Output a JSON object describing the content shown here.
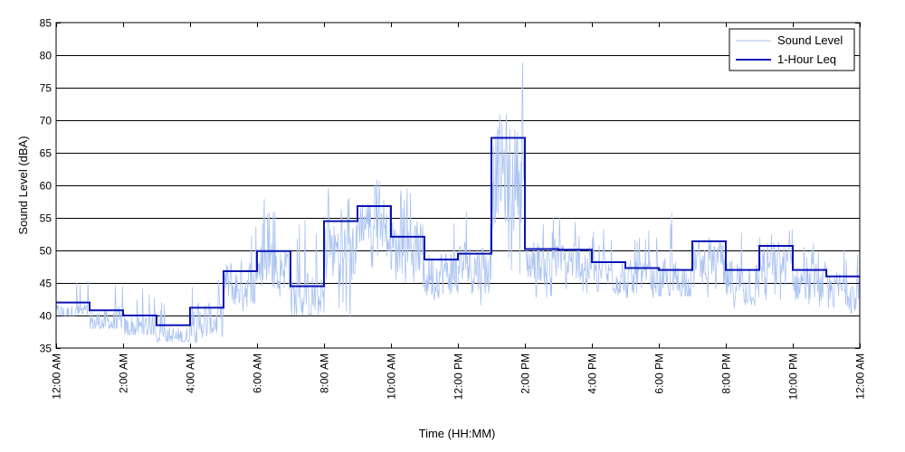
{
  "chart_data": {
    "type": "line",
    "xlabel": "Time (HH:MM)",
    "ylabel": "Sound Level (dBA)",
    "xlim": [
      0,
      24
    ],
    "ylim": [
      35,
      85
    ],
    "y_ticks": [
      35,
      40,
      45,
      50,
      55,
      60,
      65,
      70,
      75,
      80,
      85
    ],
    "x_ticks": [
      {
        "hour": 0,
        "label": "12:00 AM"
      },
      {
        "hour": 2,
        "label": "2:00 AM"
      },
      {
        "hour": 4,
        "label": "4:00 AM"
      },
      {
        "hour": 6,
        "label": "6:00 AM"
      },
      {
        "hour": 8,
        "label": "8:00 AM"
      },
      {
        "hour": 10,
        "label": "10:00 AM"
      },
      {
        "hour": 12,
        "label": "12:00 PM"
      },
      {
        "hour": 14,
        "label": "2:00 PM"
      },
      {
        "hour": 16,
        "label": "4:00 PM"
      },
      {
        "hour": 18,
        "label": "6:00 PM"
      },
      {
        "hour": 20,
        "label": "8:00 PM"
      },
      {
        "hour": 22,
        "label": "10:00 PM"
      },
      {
        "hour": 24,
        "label": "12:00 AM"
      }
    ],
    "grid": "horizontal",
    "legend_position": "top-right",
    "series": [
      {
        "name": "Sound Level",
        "style": "thin-line",
        "color": "#a9c2f2",
        "envelope_by_hour": [
          [
            40,
            48
          ],
          [
            38,
            48
          ],
          [
            37,
            47
          ],
          [
            36,
            44
          ],
          [
            35,
            48
          ],
          [
            40,
            57
          ],
          [
            42,
            60
          ],
          [
            40,
            58
          ],
          [
            38,
            62
          ],
          [
            45,
            64
          ],
          [
            40,
            62
          ],
          [
            41,
            58
          ],
          [
            40,
            59
          ],
          [
            42,
            82
          ],
          [
            41,
            58
          ],
          [
            42,
            57
          ],
          [
            42,
            55
          ],
          [
            42,
            55
          ],
          [
            43,
            60
          ],
          [
            42,
            55
          ],
          [
            41,
            58
          ],
          [
            40,
            56
          ],
          [
            39,
            53
          ],
          [
            39,
            52
          ]
        ]
      },
      {
        "name": "1-Hour Leq",
        "style": "step",
        "color": "#0a14b4",
        "hours": [
          0,
          1,
          2,
          3,
          4,
          5,
          6,
          7,
          8,
          9,
          10,
          11,
          12,
          13,
          14,
          15,
          16,
          17,
          18,
          19,
          20,
          21,
          22,
          23
        ],
        "values": [
          42.0,
          40.8,
          40.0,
          38.5,
          41.2,
          46.8,
          49.9,
          44.5,
          54.5,
          56.8,
          52.1,
          48.6,
          49.5,
          67.3,
          50.2,
          50.1,
          48.2,
          47.3,
          47.0,
          51.4,
          47.0,
          50.7,
          47.0,
          46.0
        ]
      }
    ]
  }
}
